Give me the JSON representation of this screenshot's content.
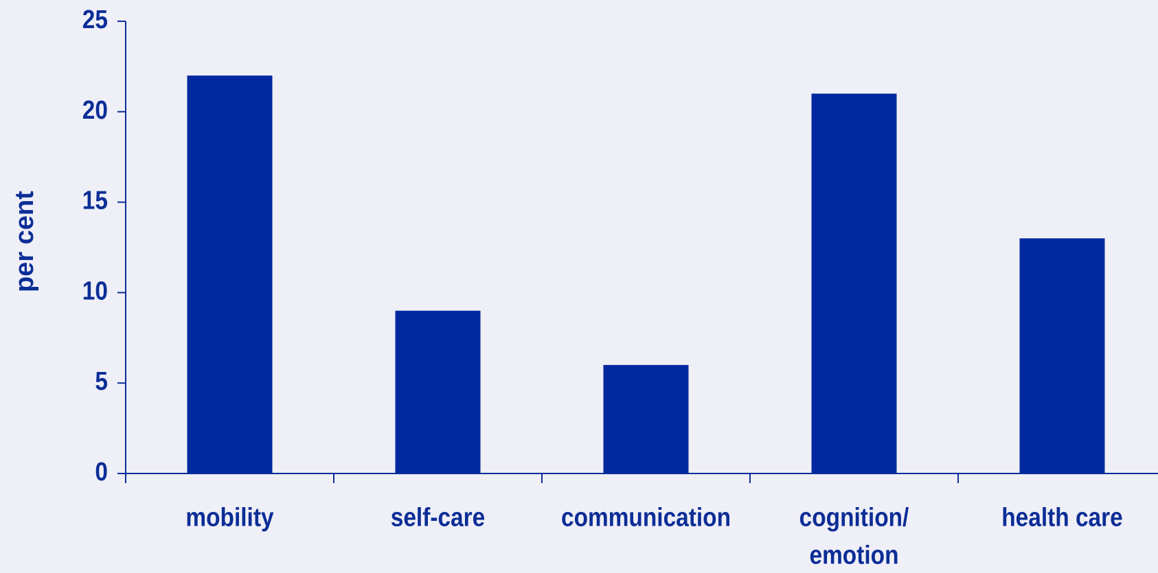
{
  "chart_data": {
    "type": "bar",
    "ylabel": "per cent",
    "categories": [
      "mobility",
      "self-care",
      "communication",
      "cognition/\nemotion",
      "health care"
    ],
    "values": [
      22,
      9,
      6,
      21,
      13
    ],
    "color": "#0029a0",
    "ylim": [
      0,
      25
    ],
    "yticks": [
      0,
      5,
      10,
      15,
      20,
      25
    ],
    "grid": false
  }
}
